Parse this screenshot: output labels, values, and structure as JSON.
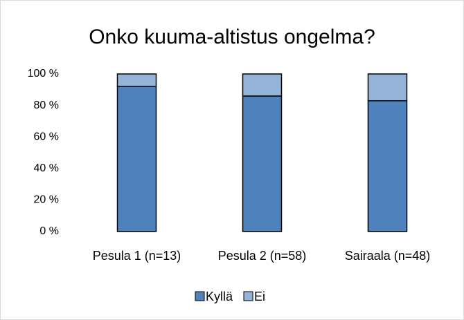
{
  "chart_data": {
    "type": "stacked_bar",
    "title": "Onko kuuma-altistus ongelma?",
    "categories": [
      "Pesula 1 (n=13)",
      "Pesula 2 (n=58)",
      "Sairaala (n=48)"
    ],
    "series": [
      {
        "name": "Kyllä",
        "color": "#4f81bd",
        "values": [
          92,
          86,
          83
        ]
      },
      {
        "name": "Ei",
        "color": "#95b3d7",
        "values": [
          8,
          14,
          17
        ]
      }
    ],
    "ylim": [
      0,
      100
    ],
    "yticks": [
      {
        "value": 0,
        "label": "0 %"
      },
      {
        "value": 20,
        "label": "20 %"
      },
      {
        "value": 40,
        "label": "40 %"
      },
      {
        "value": 60,
        "label": "60 %"
      },
      {
        "value": 80,
        "label": "80 %"
      },
      {
        "value": 100,
        "label": "100 %"
      }
    ],
    "grid": false,
    "legend": "bottom"
  }
}
